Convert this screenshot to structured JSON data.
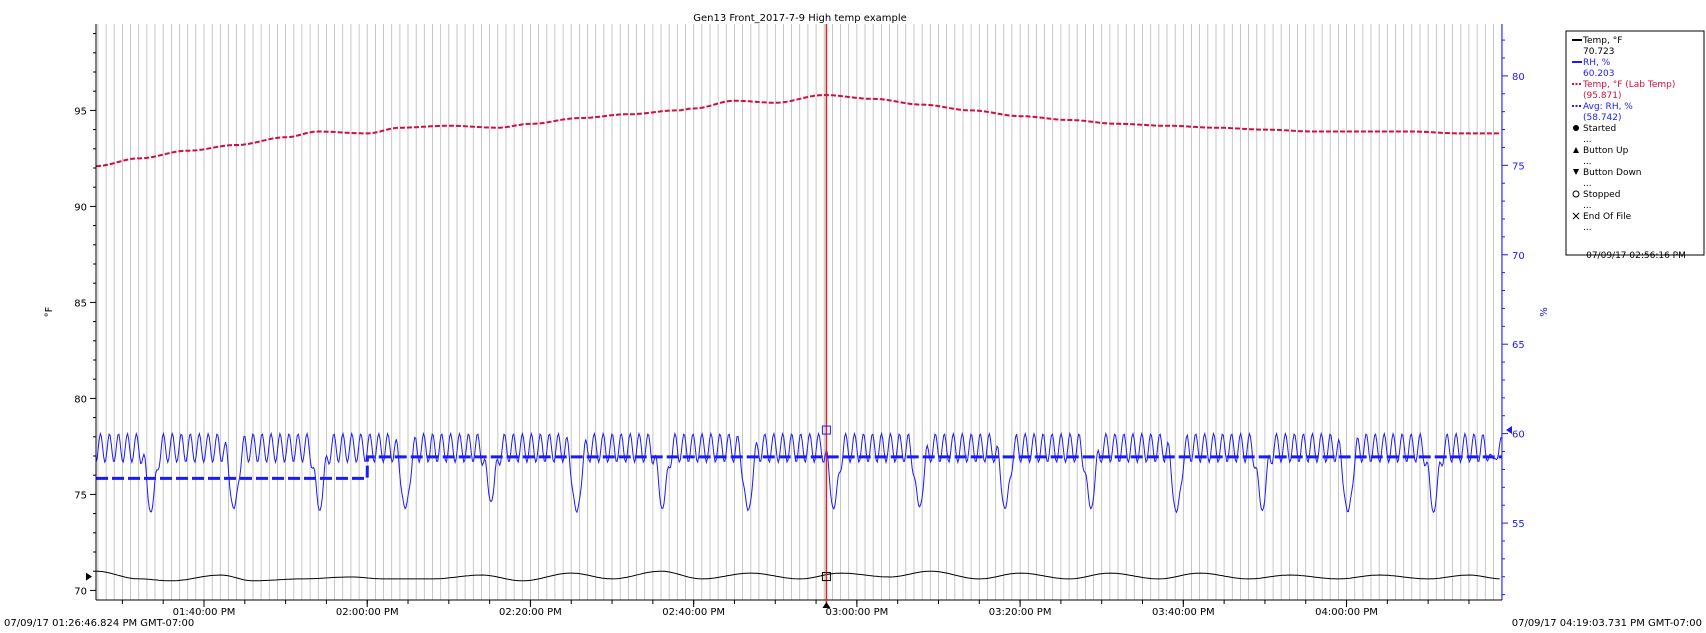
{
  "chart_data": {
    "type": "line",
    "title": "Gen13 Front_2017-7-9 High temp example",
    "left_axis": {
      "label": "°F",
      "range": [
        69.5,
        99.5
      ],
      "ticks": [
        70,
        75,
        80,
        85,
        90,
        95
      ],
      "color": "#000000"
    },
    "right_axis": {
      "label": "%",
      "range": [
        50.7,
        82.9
      ],
      "ticks": [
        55,
        60,
        65,
        70,
        75,
        80
      ],
      "color": "#1a1aff"
    },
    "x_axis": {
      "start": "2017-07-09T13:26:46",
      "end": "2017-07-09T16:19:03",
      "start_label": "07/09/17 01:26:46.824 PM GMT-07:00",
      "end_label": "07/09/17 04:19:03.731 PM GMT-07:00",
      "ticks": [
        {
          "t": "2017-07-09T13:40:00",
          "label": "01:40:00 PM"
        },
        {
          "t": "2017-07-09T14:00:00",
          "label": "02:00:00 PM"
        },
        {
          "t": "2017-07-09T14:20:00",
          "label": "02:20:00 PM"
        },
        {
          "t": "2017-07-09T14:40:00",
          "label": "02:40:00 PM"
        },
        {
          "t": "2017-07-09T15:00:00",
          "label": "03:00:00 PM"
        },
        {
          "t": "2017-07-09T15:20:00",
          "label": "03:20:00 PM"
        },
        {
          "t": "2017-07-09T15:40:00",
          "label": "03:40:00 PM"
        },
        {
          "t": "2017-07-09T16:00:00",
          "label": "04:00:00 PM"
        }
      ]
    },
    "grid": "vertical",
    "cursor": {
      "t": "2017-07-09T14:56:16",
      "label": "07/09/17 02:56:16 PM",
      "color": "#e02020"
    },
    "legend": {
      "placement": "right",
      "entries": [
        {
          "name": "Temp, °F",
          "value": "70.723",
          "color": "#000000",
          "style": "solid"
        },
        {
          "name": "RH, %",
          "value": "60.203",
          "color": "#1a1aff",
          "style": "solid"
        },
        {
          "name": "Temp, °F (Lab Temp)",
          "value": "(95.871)",
          "color": "#d0103a",
          "style": "dotted"
        },
        {
          "name": "Avg: RH, %",
          "value": "(58.742)",
          "color": "#1a1aff",
          "style": "dotted"
        },
        {
          "name": "Started",
          "value": "...",
          "color": "#000000",
          "style": "marker-filled-circle"
        },
        {
          "name": "Button Up",
          "value": "...",
          "color": "#000000",
          "style": "marker-triangle-up"
        },
        {
          "name": "Button Down",
          "value": "...",
          "color": "#000000",
          "style": "marker-triangle-down"
        },
        {
          "name": "Stopped",
          "value": "...",
          "color": "#000000",
          "style": "marker-open-circle"
        },
        {
          "name": "End Of File",
          "value": "...",
          "color": "#000000",
          "style": "marker-x"
        }
      ]
    },
    "series": [
      {
        "name": "Temp, °F",
        "axis": "left",
        "color": "#000000",
        "style": "solid",
        "x": [
          "2017-07-09T13:26:46",
          "2017-07-09T13:32:00",
          "2017-07-09T13:36:00",
          "2017-07-09T13:42:00",
          "2017-07-09T13:46:00",
          "2017-07-09T13:52:00",
          "2017-07-09T13:58:00",
          "2017-07-09T14:02:00",
          "2017-07-09T14:08:00",
          "2017-07-09T14:14:00",
          "2017-07-09T14:19:00",
          "2017-07-09T14:25:00",
          "2017-07-09T14:30:00",
          "2017-07-09T14:36:00",
          "2017-07-09T14:41:00",
          "2017-07-09T14:47:00",
          "2017-07-09T14:53:00",
          "2017-07-09T14:58:00",
          "2017-07-09T15:04:00",
          "2017-07-09T15:09:00",
          "2017-07-09T15:15:00",
          "2017-07-09T15:20:00",
          "2017-07-09T15:26:00",
          "2017-07-09T15:31:00",
          "2017-07-09T15:37:00",
          "2017-07-09T15:42:00",
          "2017-07-09T15:48:00",
          "2017-07-09T15:53:00",
          "2017-07-09T15:59:00",
          "2017-07-09T16:04:00",
          "2017-07-09T16:10:00",
          "2017-07-09T16:15:00",
          "2017-07-09T16:19:03"
        ],
        "values": [
          71.0,
          70.6,
          70.5,
          70.8,
          70.5,
          70.6,
          70.7,
          70.6,
          70.6,
          70.8,
          70.5,
          70.9,
          70.6,
          71.0,
          70.6,
          70.9,
          70.6,
          70.9,
          70.7,
          71.0,
          70.6,
          70.9,
          70.6,
          70.9,
          70.6,
          70.9,
          70.6,
          70.8,
          70.6,
          70.8,
          70.6,
          70.8,
          70.6
        ]
      },
      {
        "name": "RH, %",
        "axis": "right",
        "color": "#1a1aff",
        "style": "solid",
        "oscillation": {
          "low": 58.4,
          "high": 60.0,
          "period_minutes": 1.1
        },
        "dips": [
          {
            "t": "2017-07-09T13:33:30",
            "value": 55.6
          },
          {
            "t": "2017-07-09T13:43:40",
            "value": 55.8
          },
          {
            "t": "2017-07-09T13:54:10",
            "value": 55.7
          },
          {
            "t": "2017-07-09T14:04:40",
            "value": 55.8
          },
          {
            "t": "2017-07-09T14:15:10",
            "value": 56.2
          },
          {
            "t": "2017-07-09T14:25:40",
            "value": 55.6
          },
          {
            "t": "2017-07-09T14:36:10",
            "value": 55.8
          },
          {
            "t": "2017-07-09T14:46:40",
            "value": 55.7
          },
          {
            "t": "2017-07-09T14:57:10",
            "value": 55.8
          },
          {
            "t": "2017-07-09T15:07:40",
            "value": 55.9
          },
          {
            "t": "2017-07-09T15:18:10",
            "value": 55.8
          },
          {
            "t": "2017-07-09T15:28:40",
            "value": 55.8
          },
          {
            "t": "2017-07-09T15:39:10",
            "value": 55.6
          },
          {
            "t": "2017-07-09T15:49:40",
            "value": 55.7
          },
          {
            "t": "2017-07-09T16:00:10",
            "value": 55.6
          },
          {
            "t": "2017-07-09T16:10:40",
            "value": 55.6
          },
          {
            "t": "2017-07-09T16:18:00",
            "value": 58.6
          }
        ]
      },
      {
        "name": "Temp, °F (Lab Temp)",
        "axis": "left",
        "color": "#d0103a",
        "style": "dotted",
        "x": [
          "2017-07-09T13:26:46",
          "2017-07-09T13:32:00",
          "2017-07-09T13:38:00",
          "2017-07-09T13:44:00",
          "2017-07-09T13:50:00",
          "2017-07-09T13:54:00",
          "2017-07-09T14:00:00",
          "2017-07-09T14:04:00",
          "2017-07-09T14:10:00",
          "2017-07-09T14:16:00",
          "2017-07-09T14:20:00",
          "2017-07-09T14:26:00",
          "2017-07-09T14:32:00",
          "2017-07-09T14:38:00",
          "2017-07-09T14:40:00",
          "2017-07-09T14:45:00",
          "2017-07-09T14:50:00",
          "2017-07-09T14:56:00",
          "2017-07-09T15:02:00",
          "2017-07-09T15:08:00",
          "2017-07-09T15:14:00",
          "2017-07-09T15:20:00",
          "2017-07-09T15:26:00",
          "2017-07-09T15:32:00",
          "2017-07-09T15:38:00",
          "2017-07-09T15:44:00",
          "2017-07-09T15:50:00",
          "2017-07-09T15:56:00",
          "2017-07-09T16:02:00",
          "2017-07-09T16:08:00",
          "2017-07-09T16:14:00",
          "2017-07-09T16:19:03"
        ],
        "values": [
          92.1,
          92.5,
          92.9,
          93.2,
          93.6,
          93.9,
          93.8,
          94.1,
          94.2,
          94.1,
          94.3,
          94.6,
          94.8,
          95.0,
          95.1,
          95.5,
          95.4,
          95.8,
          95.6,
          95.3,
          95.0,
          94.7,
          94.5,
          94.3,
          94.2,
          94.1,
          94.0,
          93.9,
          93.9,
          93.9,
          93.8,
          93.8
        ]
      },
      {
        "name": "Avg: RH, %",
        "axis": "right",
        "color": "#1a1aff",
        "style": "dashed",
        "x": [
          "2017-07-09T13:26:46",
          "2017-07-09T14:00:00",
          "2017-07-09T14:00:01",
          "2017-07-09T16:19:03"
        ],
        "values": [
          57.5,
          57.5,
          58.7,
          58.7
        ]
      }
    ]
  }
}
